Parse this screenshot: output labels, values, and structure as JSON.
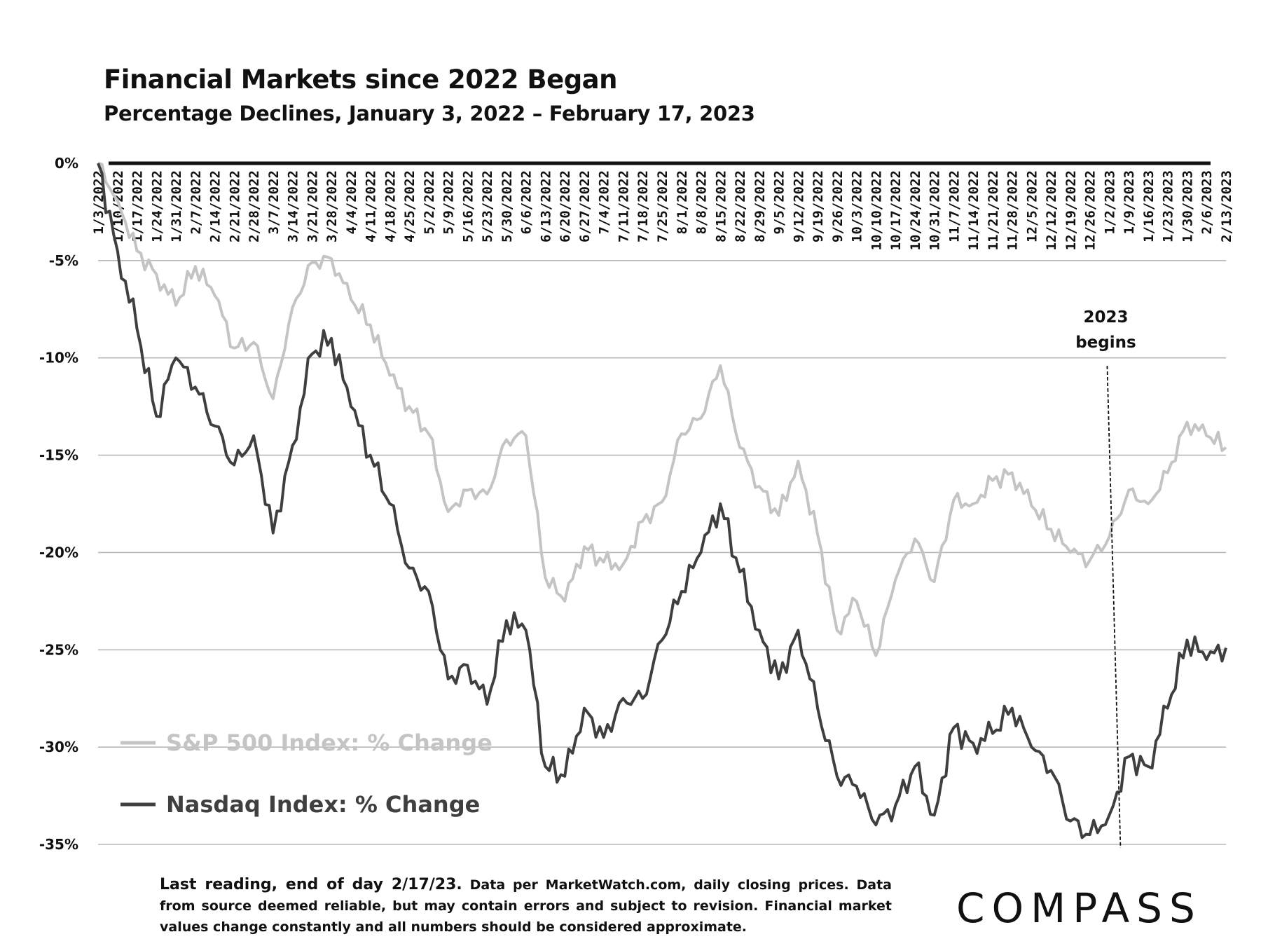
{
  "title": "Financial Markets since 2022 Began",
  "subtitle": "Percentage Declines, January 3, 2022 – February 17, 2023",
  "footnote": {
    "lead": "Last reading, end of day 2/17/23.",
    "text": "Data per MarketWatch.com, daily closing prices. Data from source deemed reliable, but may contain errors and subject to revision. Financial market values change constantly and all numbers should be considered approximate."
  },
  "logo": "COMPASS",
  "colors": {
    "sp500": "#c3c5c3",
    "nasdaq": "#3e4040",
    "grid": "#b8b8b8",
    "zero": "#111111"
  },
  "chart_data": {
    "type": "line",
    "title": "Financial Markets since 2022 Began",
    "xlabel": "",
    "ylabel": "",
    "ylim": [
      -35,
      0
    ],
    "yticks": [
      0,
      -5,
      -10,
      -15,
      -20,
      -25,
      -30,
      -35
    ],
    "ytick_labels": [
      "0%",
      "-5%",
      "-10%",
      "-15%",
      "-20%",
      "-25%",
      "-30%",
      "-35%"
    ],
    "x_weeks": [
      "1/3/2022",
      "1/10/2022",
      "1/17/2022",
      "1/24/2022",
      "1/31/2022",
      "2/7/2022",
      "2/14/2022",
      "2/21/2022",
      "2/28/2022",
      "3/7/2022",
      "3/14/2022",
      "3/21/2022",
      "3/28/2022",
      "4/4/2022",
      "4/11/2022",
      "4/18/2022",
      "4/25/2022",
      "5/2/2022",
      "5/9/2022",
      "5/16/2022",
      "5/23/2022",
      "5/30/2022",
      "6/6/2022",
      "6/13/2022",
      "6/20/2022",
      "6/27/2022",
      "7/4/2022",
      "7/11/2022",
      "7/18/2022",
      "7/25/2022",
      "8/1/2022",
      "8/8/2022",
      "8/15/2022",
      "8/22/2022",
      "8/29/2022",
      "9/5/2022",
      "9/12/2022",
      "9/19/2022",
      "9/26/2022",
      "10/3/2022",
      "10/10/2022",
      "10/17/2022",
      "10/24/2022",
      "10/31/2022",
      "11/7/2022",
      "11/14/2022",
      "11/21/2022",
      "11/28/2022",
      "12/5/2022",
      "12/12/2022",
      "12/19/2022",
      "12/26/2022",
      "1/2/2023",
      "1/9/2023",
      "1/16/2023",
      "1/23/2023",
      "1/30/2023",
      "2/6/2023",
      "2/13/2023"
    ],
    "annotation": {
      "line1": "2023",
      "line2": "begins",
      "at_week": "1/2/2023"
    },
    "series": [
      {
        "name": "S&P 500 Index: % Change",
        "values": [
          0,
          -1.9,
          -4.5,
          -5.7,
          -7.3,
          -5.3,
          -6.8,
          -9.5,
          -9.2,
          -12.1,
          -7.4,
          -5.1,
          -4.9,
          -7.0,
          -8.3,
          -10.9,
          -12.5,
          -13.9,
          -17.9,
          -16.8,
          -17.0,
          -14.2,
          -14.0,
          -21.3,
          -22.5,
          -19.7,
          -20.5,
          -20.6,
          -18.4,
          -17.4,
          -13.9,
          -13.1,
          -10.4,
          -14.6,
          -16.6,
          -18.1,
          -15.3,
          -19.1,
          -24.0,
          -22.5,
          -25.3,
          -21.4,
          -19.3,
          -21.5,
          -17.3,
          -17.5,
          -16.3,
          -15.9,
          -17.6,
          -18.8,
          -20.0,
          -20.4,
          -19.2,
          -16.8,
          -17.5,
          -15.9,
          -13.3,
          -14.0,
          -14.6
        ]
      },
      {
        "name": "Nasdaq Index: % Change",
        "values": [
          0,
          -4.5,
          -8.5,
          -13.0,
          -10.0,
          -11.5,
          -13.5,
          -15.5,
          -14.0,
          -19.0,
          -14.5,
          -9.8,
          -9.0,
          -12.5,
          -15.0,
          -17.5,
          -20.8,
          -22.0,
          -26.5,
          -25.8,
          -27.8,
          -23.5,
          -24.0,
          -31.0,
          -31.5,
          -28.0,
          -29.5,
          -27.5,
          -27.5,
          -24.5,
          -22.0,
          -20.0,
          -17.5,
          -21.0,
          -24.0,
          -26.5,
          -24.0,
          -28.0,
          -31.5,
          -32.0,
          -34.0,
          -33.0,
          -31.0,
          -33.5,
          -29.0,
          -29.8,
          -29.3,
          -28.0,
          -30.0,
          -31.2,
          -33.8,
          -34.5,
          -33.5,
          -30.5,
          -31.0,
          -28.0,
          -24.5,
          -25.5,
          -24.9
        ]
      }
    ]
  }
}
